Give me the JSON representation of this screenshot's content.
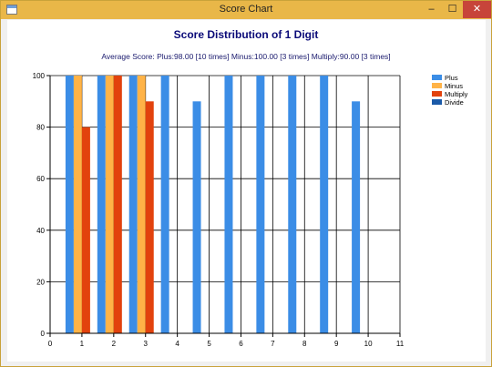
{
  "window": {
    "title": "Score Chart",
    "controls": {
      "minimize": "–",
      "maximize": "☐",
      "close": "✕"
    }
  },
  "chart_data": {
    "type": "bar",
    "title": "Score Distribution of 1 Digit",
    "subtitle": "Average Score: Plus:98.00 [10 times]  Minus:100.00 [3 times]  Multiply:90.00 [3 times]",
    "xlabel": "",
    "ylabel": "",
    "xlim": [
      0,
      11
    ],
    "ylim": [
      0,
      100
    ],
    "x_ticks": [
      0,
      1,
      2,
      3,
      4,
      5,
      6,
      7,
      8,
      9,
      10,
      11
    ],
    "y_ticks": [
      0,
      20,
      40,
      60,
      80,
      100
    ],
    "grid": true,
    "legend_position": "right",
    "series": [
      {
        "name": "Plus",
        "color": "#3b8de6",
        "x": [
          1,
          2,
          3,
          4,
          5,
          6,
          7,
          8,
          9,
          10
        ],
        "values": [
          100,
          100,
          100,
          100,
          90,
          100,
          100,
          100,
          100,
          90
        ]
      },
      {
        "name": "Minus",
        "color": "#ffb347",
        "x": [
          1,
          2,
          3
        ],
        "values": [
          100,
          100,
          100
        ]
      },
      {
        "name": "Multiply",
        "color": "#e2420d",
        "x": [
          1,
          2,
          3
        ],
        "values": [
          80,
          100,
          90
        ]
      },
      {
        "name": "Divide",
        "color": "#1a5aa8",
        "x": [],
        "values": []
      }
    ]
  }
}
